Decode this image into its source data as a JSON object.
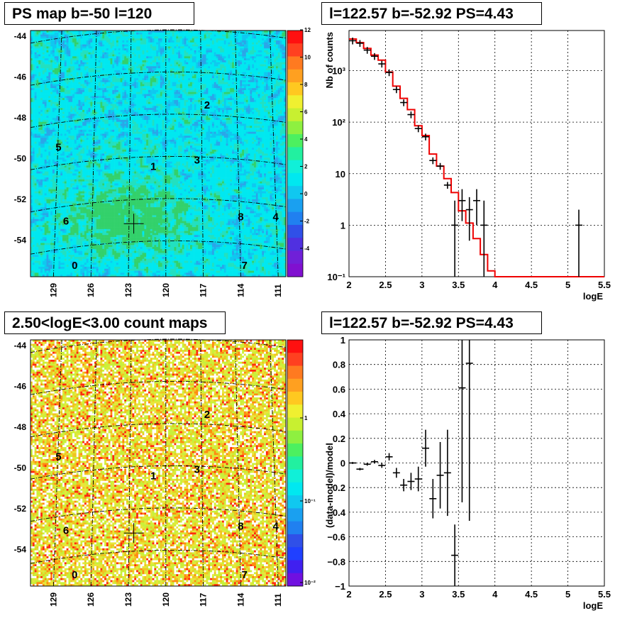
{
  "panels": [
    {
      "title": "PS map b=-50 l=120",
      "type": "heatmap",
      "lat_ticks": [
        "-44",
        "-46",
        "-48",
        "-50",
        "-52",
        "-54"
      ],
      "lon_ticks": [
        "129",
        "126",
        "123",
        "120",
        "117",
        "114",
        "111"
      ],
      "palette_ticks": [
        "12",
        "10",
        "8",
        "6",
        "4",
        "2",
        "0",
        "-2",
        "-4"
      ],
      "regions": [
        {
          "label": "0",
          "lon": 127.3,
          "lat": -54.9
        },
        {
          "label": "1",
          "lon": 121.0,
          "lat": -50.2
        },
        {
          "label": "2",
          "lon": 116.7,
          "lat": -47.3
        },
        {
          "label": "3",
          "lon": 117.5,
          "lat": -49.9
        },
        {
          "label": "4",
          "lon": 111.2,
          "lat": -52.6
        },
        {
          "label": "5",
          "lon": 128.6,
          "lat": -49.3
        },
        {
          "label": "6",
          "lon": 128.0,
          "lat": -52.8
        },
        {
          "label": "7",
          "lon": 113.7,
          "lat": -54.9
        },
        {
          "label": "8",
          "lon": 114.0,
          "lat": -52.6
        }
      ],
      "source_marker": {
        "lon": 122.57,
        "lat": -52.92
      }
    },
    {
      "title": "l=122.57 b=-52.92 PS=4.43",
      "type": "line",
      "xlabel": "logE",
      "ylabel": "Nb of counts",
      "x_ticks": [
        "2",
        "2.5",
        "3",
        "3.5",
        "4",
        "4.5",
        "5",
        "5.5"
      ],
      "y_ticks": [
        "10⁻¹",
        "1",
        "10",
        "10²",
        "10³"
      ],
      "xlim": [
        2,
        5.5
      ],
      "ylim": [
        0.1,
        6000
      ],
      "log_y": true,
      "data_points": [
        {
          "x": 2.05,
          "y": 3800
        },
        {
          "x": 2.15,
          "y": 3400
        },
        {
          "x": 2.25,
          "y": 2500
        },
        {
          "x": 2.35,
          "y": 1900
        },
        {
          "x": 2.45,
          "y": 1350
        },
        {
          "x": 2.55,
          "y": 920
        },
        {
          "x": 2.65,
          "y": 430
        },
        {
          "x": 2.75,
          "y": 240
        },
        {
          "x": 2.85,
          "y": 140
        },
        {
          "x": 2.95,
          "y": 75
        },
        {
          "x": 3.05,
          "y": 52
        },
        {
          "x": 3.15,
          "y": 18
        },
        {
          "x": 3.25,
          "y": 14
        },
        {
          "x": 3.35,
          "y": 6
        },
        {
          "x": 3.45,
          "y": 1,
          "low": 0.1,
          "high": 3
        },
        {
          "x": 3.55,
          "y": 3,
          "low": 1.2,
          "high": 5
        },
        {
          "x": 3.65,
          "y": 2,
          "low": 0.5,
          "high": 3.5
        },
        {
          "x": 3.75,
          "y": 3,
          "low": 1,
          "high": 5
        },
        {
          "x": 3.85,
          "y": 1,
          "low": 0.1,
          "high": 3
        },
        {
          "x": 5.15,
          "y": 1,
          "low": 0.1,
          "high": 2
        }
      ],
      "model_steps": [
        4100,
        3500,
        2700,
        2000,
        1600,
        940,
        500,
        290,
        175,
        85,
        55,
        24,
        14,
        8,
        4.3,
        1.9,
        1.1,
        0.55,
        0.27,
        0.13,
        0.1
      ]
    },
    {
      "title": "2.50<logE<3.00 count maps",
      "type": "heatmap",
      "lat_ticks": [
        "-44",
        "-46",
        "-48",
        "-50",
        "-52",
        "-54"
      ],
      "lon_ticks": [
        "129",
        "126",
        "123",
        "120",
        "117",
        "114",
        "111"
      ],
      "palette_ticks": [
        "1",
        "10⁻¹",
        "10⁻²"
      ],
      "regions": [
        {
          "label": "0",
          "lon": 127.3,
          "lat": -54.9
        },
        {
          "label": "1",
          "lon": 121.0,
          "lat": -50.2
        },
        {
          "label": "2",
          "lon": 116.7,
          "lat": -47.3
        },
        {
          "label": "3",
          "lon": 117.5,
          "lat": -49.9
        },
        {
          "label": "4",
          "lon": 111.2,
          "lat": -52.6
        },
        {
          "label": "5",
          "lon": 128.6,
          "lat": -49.3
        },
        {
          "label": "6",
          "lon": 128.0,
          "lat": -52.8
        },
        {
          "label": "7",
          "lon": 113.7,
          "lat": -54.9
        },
        {
          "label": "8",
          "lon": 114.0,
          "lat": -52.6
        }
      ],
      "source_marker": {
        "lon": 122.57,
        "lat": -52.92
      }
    },
    {
      "title": "l=122.57 b=-52.92 PS=4.43",
      "type": "scatter",
      "xlabel": "logE",
      "ylabel": "(data-model)/model",
      "x_ticks": [
        "2",
        "2.5",
        "3",
        "3.5",
        "4",
        "4.5",
        "5",
        "5.5"
      ],
      "y_ticks": [
        "−1",
        "−0.8",
        "−0.6",
        "−0.4",
        "−0.2",
        "0",
        "0.2",
        "0.4",
        "0.6",
        "0.8",
        "1"
      ],
      "xlim": [
        2,
        5.5
      ],
      "ylim": [
        -1,
        1
      ],
      "data_points": [
        {
          "x": 2.05,
          "y": 0.0,
          "err": 0.008
        },
        {
          "x": 2.15,
          "y": -0.05,
          "err": 0.01
        },
        {
          "x": 2.25,
          "y": -0.01,
          "err": 0.012
        },
        {
          "x": 2.35,
          "y": 0.01,
          "err": 0.015
        },
        {
          "x": 2.45,
          "y": -0.02,
          "err": 0.02
        },
        {
          "x": 2.55,
          "y": 0.05,
          "err": 0.03
        },
        {
          "x": 2.65,
          "y": -0.08,
          "err": 0.04
        },
        {
          "x": 2.75,
          "y": -0.18,
          "err": 0.05
        },
        {
          "x": 2.85,
          "y": -0.15,
          "err": 0.07
        },
        {
          "x": 2.95,
          "y": -0.13,
          "err": 0.1
        },
        {
          "x": 3.05,
          "y": 0.12,
          "err": 0.15
        },
        {
          "x": 3.15,
          "y": -0.29,
          "err": 0.16
        },
        {
          "x": 3.25,
          "y": -0.1,
          "err": 0.27
        },
        {
          "x": 3.35,
          "y": -0.08,
          "err": 0.35
        },
        {
          "x": 3.45,
          "y": -0.75,
          "err": 0.25
        },
        {
          "x": 3.55,
          "y": 0.61,
          "err": 0.93
        },
        {
          "x": 3.65,
          "y": 0.81,
          "err": 1.28
        }
      ]
    }
  ]
}
